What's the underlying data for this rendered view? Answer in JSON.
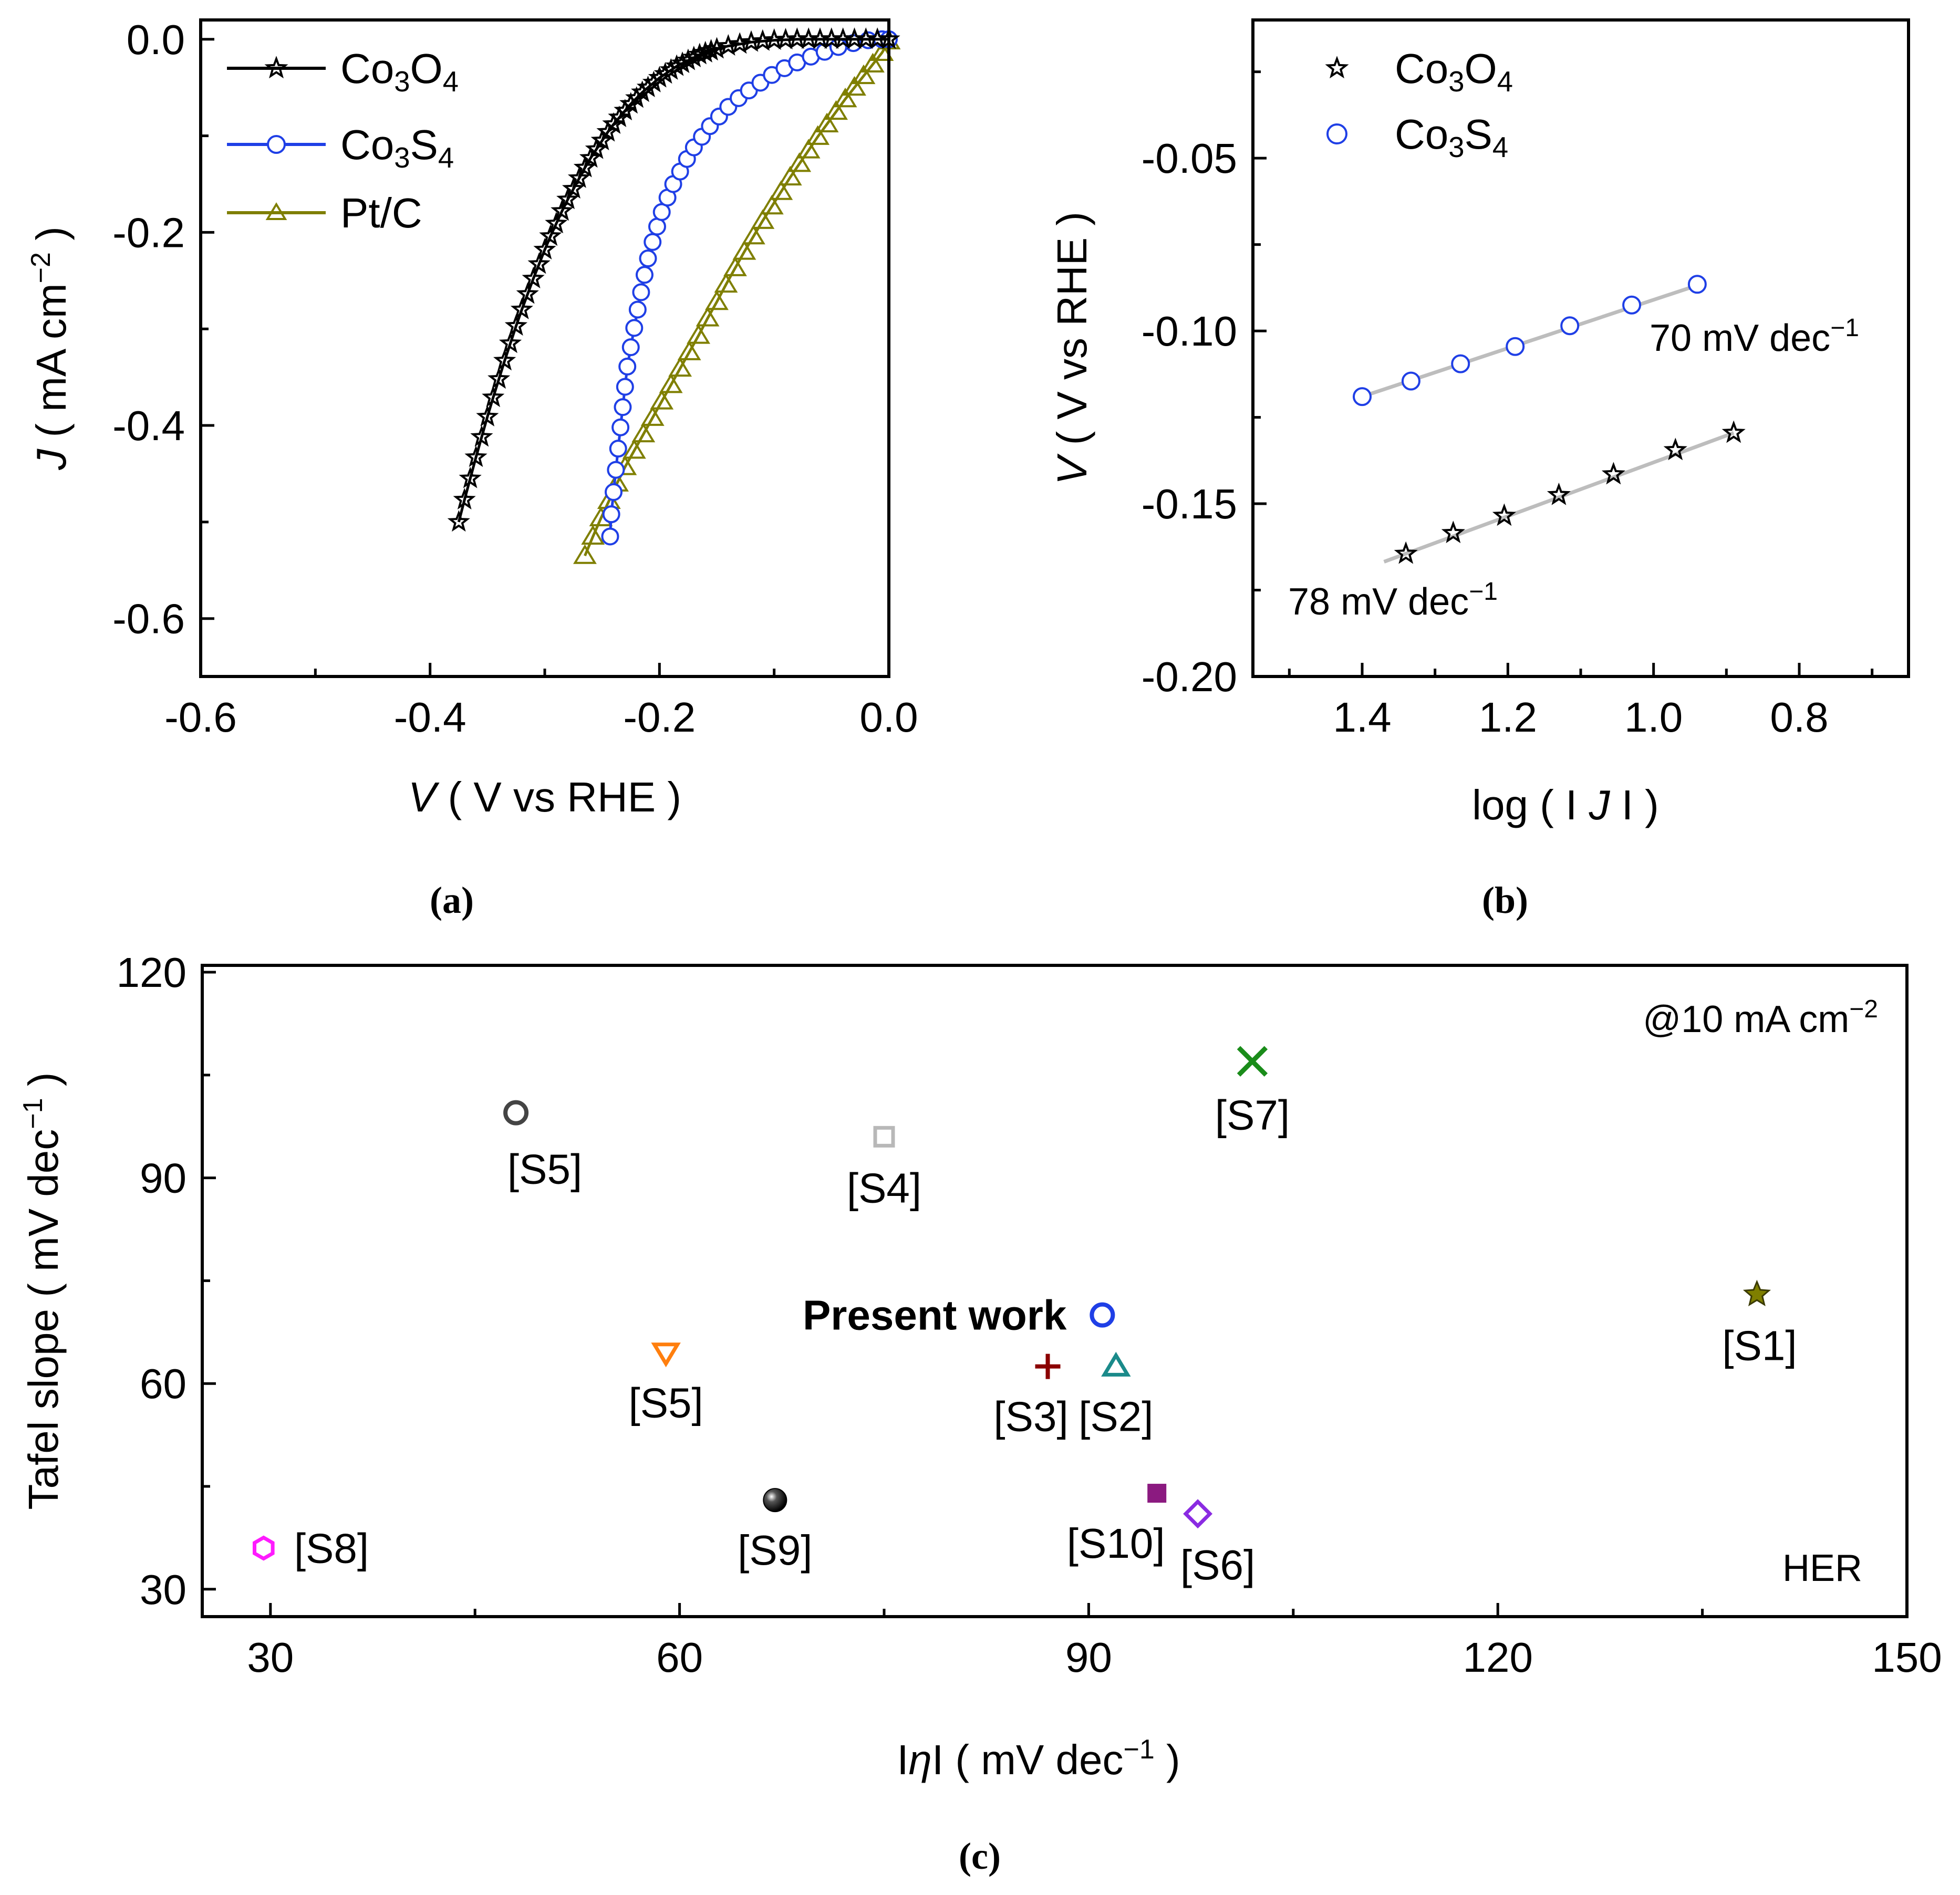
{
  "chart_data": [
    {
      "panel": "a",
      "caption": "(a)",
      "type": "line",
      "xlabel": "V ( V vs RHE )",
      "ylabel": "J ( mA cm^-2 )",
      "xlim": [
        -0.6,
        0.0
      ],
      "ylim": [
        -0.66,
        0.02
      ],
      "xticks": [
        -0.6,
        -0.4,
        -0.2,
        0.0
      ],
      "yticks": [
        0.0,
        -0.2,
        -0.4,
        -0.6
      ],
      "xtick_labels": [
        "-0.6",
        "-0.4",
        "-0.2",
        "0.0"
      ],
      "ytick_labels": [
        "0.0",
        "-0.2",
        "-0.4",
        "-0.6"
      ],
      "legend": {
        "position": "top-left",
        "entries": [
          "Co3O4",
          "Co3S4",
          "Pt/C"
        ]
      },
      "series": [
        {
          "name": "Co3O4",
          "color": "#000000",
          "marker": "star",
          "line": true,
          "x": [
            -0.375,
            -0.37,
            -0.365,
            -0.36,
            -0.355,
            -0.35,
            -0.345,
            -0.34,
            -0.335,
            -0.33,
            -0.325,
            -0.32,
            -0.315,
            -0.31,
            -0.305,
            -0.3,
            -0.295,
            -0.29,
            -0.285,
            -0.28,
            -0.275,
            -0.27,
            -0.265,
            -0.26,
            -0.255,
            -0.25,
            -0.245,
            -0.24,
            -0.235,
            -0.23,
            -0.225,
            -0.22,
            -0.215,
            -0.21,
            -0.205,
            -0.2,
            -0.195,
            -0.19,
            -0.185,
            -0.18,
            -0.175,
            -0.17,
            -0.165,
            -0.16,
            -0.155,
            -0.15,
            -0.14,
            -0.13,
            -0.12,
            -0.11,
            -0.1,
            -0.09,
            -0.08,
            -0.07,
            -0.06,
            -0.05,
            -0.04,
            -0.03,
            -0.02,
            -0.01,
            0.0
          ],
          "y": [
            -0.5,
            -0.477,
            -0.455,
            -0.433,
            -0.412,
            -0.391,
            -0.371,
            -0.352,
            -0.333,
            -0.315,
            -0.297,
            -0.28,
            -0.264,
            -0.248,
            -0.233,
            -0.218,
            -0.204,
            -0.191,
            -0.178,
            -0.166,
            -0.155,
            -0.144,
            -0.133,
            -0.123,
            -0.114,
            -0.105,
            -0.096,
            -0.088,
            -0.081,
            -0.074,
            -0.067,
            -0.061,
            -0.055,
            -0.05,
            -0.045,
            -0.04,
            -0.036,
            -0.032,
            -0.028,
            -0.025,
            -0.022,
            -0.019,
            -0.016,
            -0.014,
            -0.012,
            -0.01,
            -0.007,
            -0.005,
            -0.003,
            -0.002,
            -0.001,
            -0.0005,
            0.0,
            0.0,
            0.0,
            0.0,
            0.0,
            0.0,
            0.0,
            0.0,
            0.0
          ]
        },
        {
          "name": "Co3S4",
          "color": "#1f3fe6",
          "marker": "circle",
          "line": true,
          "x": [
            -0.243,
            -0.242,
            -0.24,
            -0.238,
            -0.236,
            -0.234,
            -0.232,
            -0.23,
            -0.228,
            -0.225,
            -0.222,
            -0.219,
            -0.216,
            -0.213,
            -0.21,
            -0.206,
            -0.202,
            -0.198,
            -0.193,
            -0.188,
            -0.182,
            -0.176,
            -0.17,
            -0.163,
            -0.156,
            -0.148,
            -0.14,
            -0.131,
            -0.122,
            -0.112,
            -0.102,
            -0.091,
            -0.08,
            -0.068,
            -0.056,
            -0.044,
            -0.031,
            -0.018,
            -0.006,
            0.0
          ],
          "y": [
            -0.515,
            -0.492,
            -0.469,
            -0.446,
            -0.424,
            -0.402,
            -0.381,
            -0.36,
            -0.339,
            -0.319,
            -0.299,
            -0.28,
            -0.262,
            -0.244,
            -0.227,
            -0.21,
            -0.194,
            -0.179,
            -0.164,
            -0.15,
            -0.137,
            -0.124,
            -0.112,
            -0.101,
            -0.09,
            -0.08,
            -0.07,
            -0.061,
            -0.053,
            -0.045,
            -0.037,
            -0.03,
            -0.024,
            -0.018,
            -0.013,
            -0.008,
            -0.004,
            -0.001,
            0.0,
            0.0
          ]
        },
        {
          "name": "Pt/C",
          "color": "#7f7f00",
          "marker": "triangle",
          "line": true,
          "x": [
            -0.265,
            -0.258,
            -0.251,
            -0.244,
            -0.237,
            -0.23,
            -0.222,
            -0.214,
            -0.206,
            -0.198,
            -0.19,
            -0.182,
            -0.174,
            -0.166,
            -0.158,
            -0.15,
            -0.142,
            -0.134,
            -0.126,
            -0.118,
            -0.11,
            -0.102,
            -0.094,
            -0.086,
            -0.078,
            -0.07,
            -0.062,
            -0.054,
            -0.046,
            -0.038,
            -0.03,
            -0.022,
            -0.014,
            -0.006,
            0.0
          ],
          "y": [
            -0.535,
            -0.515,
            -0.496,
            -0.478,
            -0.46,
            -0.443,
            -0.426,
            -0.409,
            -0.392,
            -0.375,
            -0.358,
            -0.341,
            -0.324,
            -0.307,
            -0.289,
            -0.272,
            -0.254,
            -0.237,
            -0.22,
            -0.204,
            -0.188,
            -0.173,
            -0.158,
            -0.143,
            -0.129,
            -0.115,
            -0.101,
            -0.088,
            -0.075,
            -0.062,
            -0.05,
            -0.038,
            -0.026,
            -0.014,
            -0.002
          ]
        }
      ]
    },
    {
      "panel": "b",
      "caption": "(b)",
      "type": "scatter",
      "xlabel": "log ( I J I )",
      "ylabel": "V ( V vs RHE )",
      "xlim": [
        1.55,
        0.65
      ],
      "ylim": [
        -0.2,
        -0.01
      ],
      "xticks": [
        1.4,
        1.2,
        1.0,
        0.8
      ],
      "yticks": [
        -0.05,
        -0.1,
        -0.15,
        -0.2
      ],
      "xtick_labels": [
        "1.4",
        "1.2",
        "1.0",
        "0.8"
      ],
      "ytick_labels": [
        "-0.05",
        "-0.10",
        "-0.15",
        "-0.20"
      ],
      "legend": {
        "position": "top-left",
        "entries": [
          "Co3O4",
          "Co3S4"
        ]
      },
      "annotations": [
        "70 mV dec^-1",
        "78 mV dec^-1"
      ],
      "series": [
        {
          "name": "Co3S4",
          "color": "#1f3fe6",
          "marker": "circle",
          "x": [
            1.4,
            1.333,
            1.265,
            1.19,
            1.115,
            1.03,
            0.94
          ],
          "y": [
            -0.119,
            -0.1145,
            -0.1095,
            -0.1045,
            -0.0985,
            -0.0925,
            -0.0865
          ],
          "fit": {
            "x": [
              1.4,
              0.94
            ],
            "y": [
              -0.119,
              -0.0868
            ],
            "slope_label": "70 mV dec^-1"
          }
        },
        {
          "name": "Co3O4",
          "color": "#000000",
          "marker": "star",
          "x": [
            1.34,
            1.275,
            1.205,
            1.13,
            1.055,
            0.97,
            0.89
          ],
          "y": [
            -0.1645,
            -0.1585,
            -0.1535,
            -0.1475,
            -0.1415,
            -0.1345,
            -0.1295
          ],
          "fit": {
            "x": [
              1.37,
              0.89
            ],
            "y": [
              -0.1668,
              -0.1295
            ],
            "slope_label": "78 mV dec^-1"
          }
        }
      ]
    },
    {
      "panel": "c",
      "caption": "(c)",
      "type": "scatter",
      "xlabel": "IηI ( mV dec^-1 )",
      "ylabel": "Tafel slope ( mV dec^-1 )",
      "xlim": [
        25,
        150
      ],
      "ylim": [
        26,
        121
      ],
      "xticks": [
        30,
        60,
        90,
        120,
        150
      ],
      "yticks": [
        30,
        60,
        90,
        120
      ],
      "xtick_labels": [
        "30",
        "60",
        "90",
        "120",
        "150"
      ],
      "ytick_labels": [
        "30",
        "60",
        "90",
        "120"
      ],
      "annotations": [
        "@10 mA cm^-2",
        "HER"
      ],
      "points": [
        {
          "label": "[S5]",
          "x": 48,
          "y": 99.5,
          "marker": "ring",
          "color": "#444444"
        },
        {
          "label": "[S4]",
          "x": 75,
          "y": 96,
          "marker": "square-open",
          "color": "#b8b8b8"
        },
        {
          "label": "[S7]",
          "x": 102,
          "y": 107,
          "marker": "x",
          "color": "#1a8c1a"
        },
        {
          "label": "Present work",
          "x": 91,
          "y": 70,
          "marker": "ring",
          "color": "#1f3fe6"
        },
        {
          "label": "[S1]",
          "x": 139,
          "y": 73,
          "marker": "star",
          "color": "#7f7f00"
        },
        {
          "label": "[S5]",
          "x": 59,
          "y": 64.5,
          "marker": "triangle-down",
          "color": "#ff7f0e"
        },
        {
          "label": "[S3]",
          "x": 87,
          "y": 62.5,
          "marker": "plus",
          "color": "#8b0000"
        },
        {
          "label": "[S2]",
          "x": 92,
          "y": 62.5,
          "marker": "triangle",
          "color": "#1a8a8a"
        },
        {
          "label": "[S9]",
          "x": 67,
          "y": 43,
          "marker": "sphere",
          "color": "#000000"
        },
        {
          "label": "[S10]",
          "x": 95,
          "y": 44,
          "marker": "square",
          "color": "#8b1a80"
        },
        {
          "label": "[S6]",
          "x": 98,
          "y": 41,
          "marker": "diamond",
          "color": "#8a2be2"
        },
        {
          "label": "[S8]",
          "x": 29.5,
          "y": 36,
          "marker": "hexagon",
          "color": "#ff1aff"
        }
      ]
    }
  ]
}
